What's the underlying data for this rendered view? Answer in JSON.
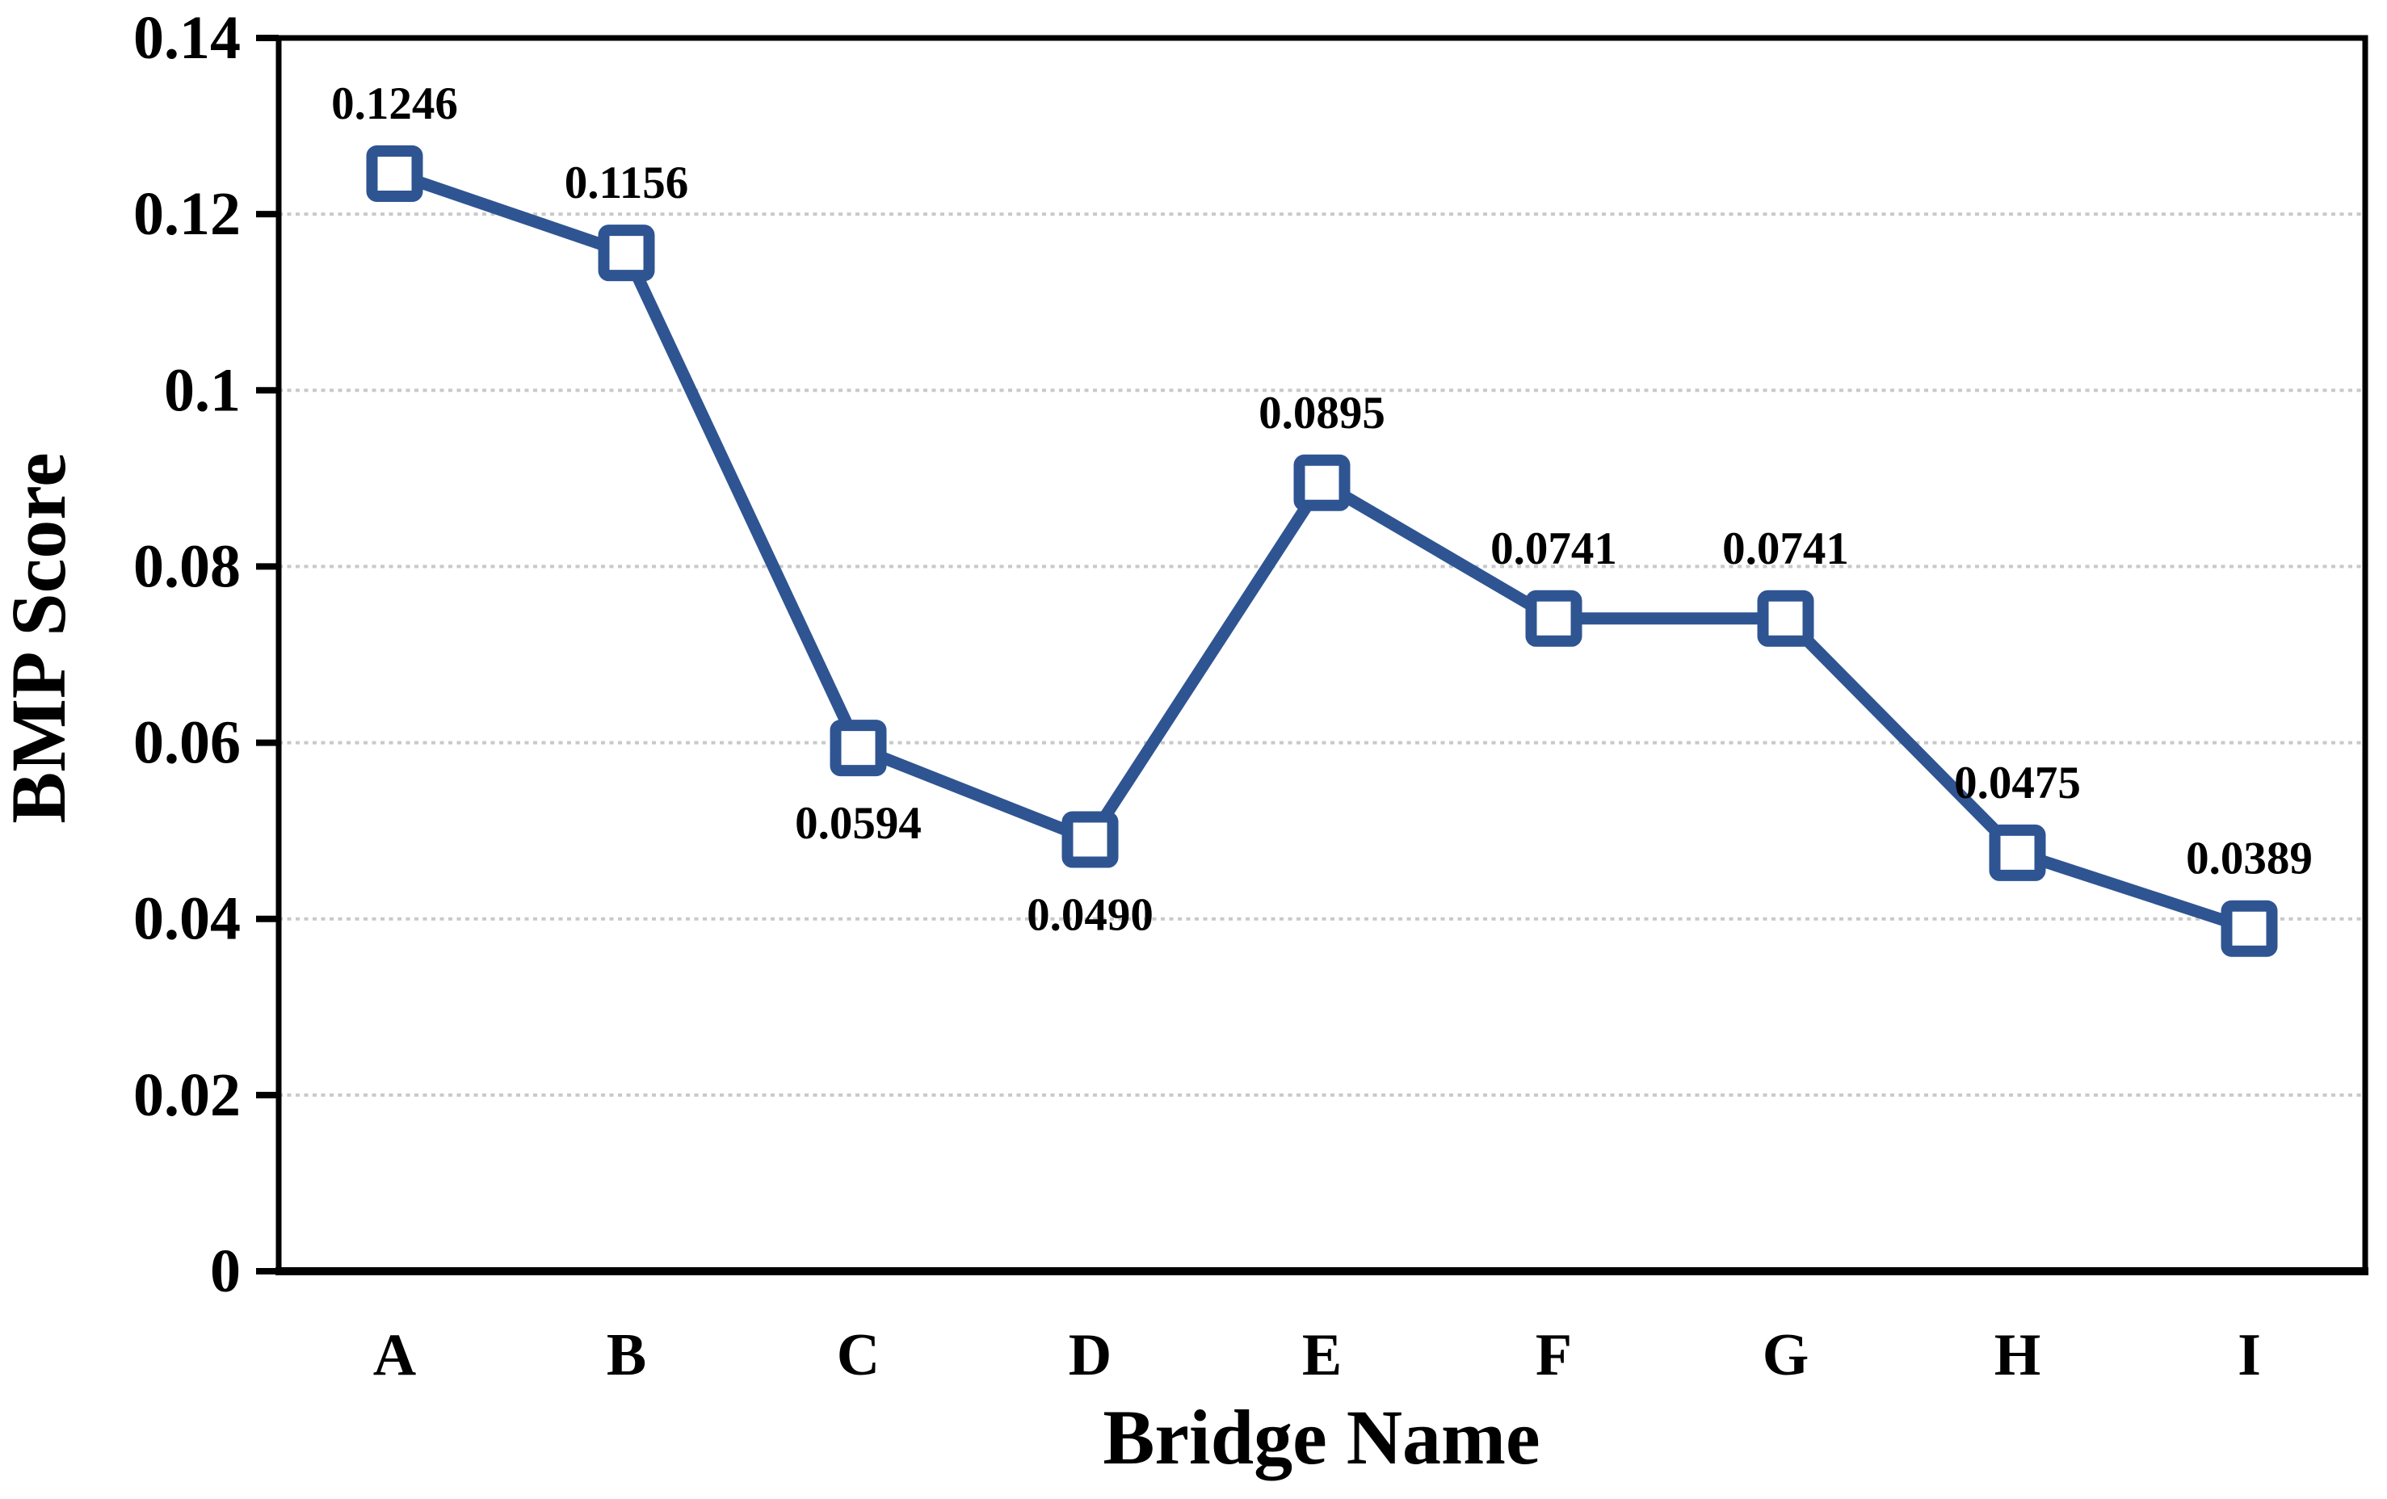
{
  "figure": {
    "background": "#ffffff"
  },
  "chart_data": {
    "type": "line",
    "title": "",
    "xlabel": "Bridge Name",
    "ylabel": "BMP Score",
    "categories": [
      "A",
      "B",
      "C",
      "D",
      "E",
      "F",
      "G",
      "H",
      "I"
    ],
    "series": [
      {
        "name": "BMP Score",
        "values": [
          0.1246,
          0.1156,
          0.0594,
          0.049,
          0.0895,
          0.0741,
          0.0741,
          0.0475,
          0.0389
        ],
        "data_labels": [
          "0.1246",
          "0.1156",
          "0.0594",
          "0.0490",
          "0.0895",
          "0.0741",
          "0.0741",
          "0.0475",
          "0.0389"
        ],
        "label_positions": [
          "above",
          "above",
          "below",
          "below",
          "above",
          "above",
          "above",
          "above",
          "above"
        ]
      }
    ],
    "ylim": [
      0,
      0.14
    ],
    "ytick_values": [
      0,
      0.02,
      0.04,
      0.06,
      0.08,
      0.1,
      0.12,
      0.14
    ],
    "ytick_labels": [
      "0",
      "0.02",
      "0.04",
      "0.06",
      "0.08",
      "0.1",
      "0.12",
      "0.14"
    ],
    "grid": "horizontal dotted, every 0.02",
    "legend": "none",
    "marker": "hollow-square",
    "colors": {
      "line": "#2F5492",
      "marker_border": "#2F5492",
      "marker_fill": "#FFFFFF",
      "gridline": "#C9C9C9",
      "axis_frame": "#000000",
      "text": "#000000"
    }
  }
}
